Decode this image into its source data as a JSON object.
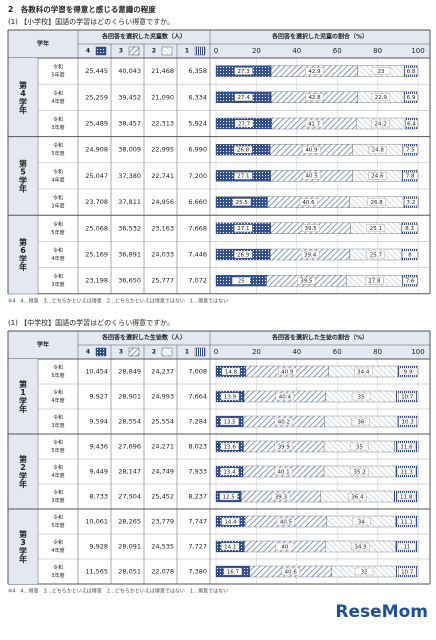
{
  "heading": "2　各教科の学習を得意と感じる意識の程度",
  "watermark": "ReseMom",
  "sections": [
    {
      "title": "(1) 【小学校】国語の学習はどのくらい得意ですか。",
      "columns": {
        "grade": "学年",
        "counts": "各回答を選択した児童数（人）",
        "ratio": "各回答を選択した児童の割合（%）",
        "options": [
          "4",
          "3",
          "2",
          "1"
        ]
      },
      "scale_ticks": [
        0,
        20,
        40,
        60,
        80,
        100
      ],
      "grades": [
        {
          "label": "第4学年",
          "rows": [
            {
              "era": "令和",
              "year": "5年度",
              "counts": [
                "25,445",
                "40,043",
                "21,468",
                "6,358"
              ],
              "percents": [
                27.3,
                42.9,
                23.0,
                6.8
              ]
            },
            {
              "era": "令和",
              "year": "4年度",
              "counts": [
                "25,259",
                "39,452",
                "21,090",
                "6,334"
              ],
              "percents": [
                27.4,
                42.8,
                22.9,
                6.9
              ]
            },
            {
              "era": "令和",
              "year": "3年度",
              "counts": [
                "25,489",
                "38,457",
                "22,313",
                "5,924"
              ],
              "percents": [
                27.7,
                41.7,
                24.2,
                6.4
              ]
            }
          ]
        },
        {
          "label": "第5学年",
          "rows": [
            {
              "era": "令和",
              "year": "5年度",
              "counts": [
                "24,908",
                "38,009",
                "22,995",
                "6,990"
              ],
              "percents": [
                26.8,
                40.9,
                24.8,
                7.5
              ]
            },
            {
              "era": "令和",
              "year": "4年度",
              "counts": [
                "25,047",
                "37,380",
                "22,741",
                "7,200"
              ],
              "percents": [
                27.1,
                40.5,
                24.6,
                7.8
              ]
            },
            {
              "era": "令和",
              "year": "3年度",
              "counts": [
                "23,708",
                "37,811",
                "24,956",
                "6,660"
              ],
              "percents": [
                25.5,
                40.6,
                26.8,
                7.2
              ]
            }
          ]
        },
        {
          "label": "第6学年",
          "rows": [
            {
              "era": "令和",
              "year": "5年度",
              "counts": [
                "25,068",
                "36,532",
                "23,163",
                "7,668"
              ],
              "percents": [
                27.1,
                39.5,
                25.1,
                8.3
              ]
            },
            {
              "era": "令和",
              "year": "4年度",
              "counts": [
                "25,169",
                "36,891",
                "24,033",
                "7,446"
              ],
              "percents": [
                26.9,
                39.4,
                25.7,
                8.0
              ]
            },
            {
              "era": "令和",
              "year": "3年度",
              "counts": [
                "23,198",
                "36,650",
                "25,777",
                "7,072"
              ],
              "percents": [
                25.0,
                39.5,
                27.8,
                7.6
              ]
            }
          ]
        }
      ],
      "footnote": "※4　4…得意　3…どちらかといえば得意　2…どちらかといえば得意ではない　1…得意ではない"
    },
    {
      "title": "(1) 【中学校】国語の学習はどのくらい得意ですか。",
      "columns": {
        "grade": "学年",
        "counts": "各回答を選択した生徒数（人）",
        "ratio": "各回答を選択した生徒の割合（%）",
        "options": [
          "4",
          "3",
          "2",
          "1"
        ]
      },
      "scale_ticks": [
        0,
        20,
        40,
        60,
        80,
        100
      ],
      "grades": [
        {
          "label": "第1学年",
          "rows": [
            {
              "era": "令和",
              "year": "5年度",
              "counts": [
                "10,454",
                "28,849",
                "24,237",
                "7,008"
              ],
              "percents": [
                14.8,
                40.9,
                34.4,
                9.9
              ]
            },
            {
              "era": "令和",
              "year": "4年度",
              "counts": [
                "9,927",
                "28,901",
                "24,993",
                "7,664"
              ],
              "percents": [
                13.9,
                40.4,
                35.0,
                10.7
              ]
            },
            {
              "era": "令和",
              "year": "3年度",
              "counts": [
                "9,594",
                "28,554",
                "25,554",
                "7,284"
              ],
              "percents": [
                13.5,
                40.2,
                36.0,
                10.3
              ]
            }
          ]
        },
        {
          "label": "第2学年",
          "rows": [
            {
              "era": "令和",
              "year": "5年度",
              "counts": [
                "9,436",
                "27,696",
                "24,271",
                "8,023"
              ],
              "percents": [
                13.6,
                39.9,
                35.0,
                11.6
              ]
            },
            {
              "era": "令和",
              "year": "4年度",
              "counts": [
                "9,449",
                "28,147",
                "24,749",
                "7,933"
              ],
              "percents": [
                13.4,
                40.1,
                35.2,
                11.3
              ]
            },
            {
              "era": "令和",
              "year": "3年度",
              "counts": [
                "8,733",
                "27,504",
                "25,452",
                "8,237"
              ],
              "percents": [
                12.5,
                39.3,
                36.4,
                11.8
              ]
            }
          ]
        },
        {
          "label": "第3学年",
          "rows": [
            {
              "era": "令和",
              "year": "5年度",
              "counts": [
                "10,061",
                "28,265",
                "23,779",
                "7,747"
              ],
              "percents": [
                14.4,
                40.5,
                34.0,
                11.1
              ]
            },
            {
              "era": "令和",
              "year": "4年度",
              "counts": [
                "9,928",
                "28,091",
                "24,535",
                "7,727"
              ],
              "percents": [
                14.1,
                40.0,
                34.9,
                11.0
              ]
            },
            {
              "era": "令和",
              "year": "3年度",
              "counts": [
                "11,565",
                "28,051",
                "22,078",
                "7,380"
              ],
              "percents": [
                16.7,
                40.6,
                32.0,
                10.7
              ]
            }
          ]
        }
      ],
      "footnote": "※4　4…得意　3…どちらかといえば得意　2…どちらかといえば得意ではない　1…得意ではない"
    }
  ]
}
